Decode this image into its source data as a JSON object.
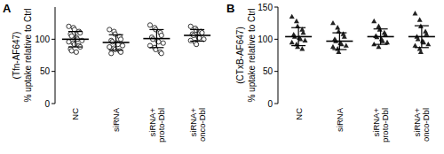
{
  "chart_data": [
    {
      "type": "scatter",
      "title": "A",
      "ylabel": [
        "(Tfn-AF647)",
        "% uptake relative to Ctrl"
      ],
      "categories": [
        "NC",
        "siRNA",
        "siRNA+ proto-Dbl",
        "siRNA+ onco-Dbl"
      ],
      "values": [
        [
          120,
          118,
          115,
          112,
          110,
          108,
          105,
          103,
          100,
          98,
          96,
          94,
          92,
          90,
          88,
          85,
          82,
          80
        ],
        [
          115,
          112,
          108,
          104,
          100,
          98,
          96,
          94,
          92,
          90,
          88,
          86,
          84,
          82,
          80,
          78
        ],
        [
          122,
          118,
          115,
          110,
          106,
          103,
          100,
          98,
          96,
          94,
          90,
          87,
          84,
          80,
          78
        ],
        [
          120,
          117,
          114,
          112,
          110,
          108,
          106,
          104,
          102,
          100,
          98,
          95,
          92
        ]
      ],
      "mean": [
        100,
        95,
        101,
        106
      ],
      "sd": [
        12,
        12,
        14,
        9
      ],
      "marker": "circle",
      "color": "#222222",
      "ylim": [
        0,
        150
      ],
      "yticks": [
        0,
        50,
        100
      ]
    },
    {
      "type": "scatter",
      "title": "B",
      "ylabel": [
        "(CTxB-AF647)",
        "% uptake relative to Ctrl"
      ],
      "categories": [
        "NC",
        "siRNA",
        "siRNA+ proto-Dbl",
        "siRNA+ onco-Dbl"
      ],
      "values": [
        [
          135,
          128,
          120,
          115,
          110,
          107,
          104,
          102,
          100,
          98,
          95,
          92,
          88,
          85
        ],
        [
          125,
          118,
          112,
          108,
          104,
          100,
          97,
          94,
          92,
          90,
          88,
          85,
          80
        ],
        [
          128,
          120,
          115,
          110,
          107,
          105,
          103,
          100,
          97,
          95,
          92,
          88
        ],
        [
          140,
          130,
          120,
          112,
          108,
          104,
          100,
          97,
          95,
          92,
          90,
          85,
          80
        ]
      ],
      "mean": [
        104,
        97,
        104,
        104
      ],
      "sd": [
        14,
        13,
        12,
        17
      ],
      "marker": "triangle",
      "color": "#222222",
      "ylim": [
        0,
        150
      ],
      "yticks": [
        0,
        50,
        100,
        150
      ]
    }
  ]
}
